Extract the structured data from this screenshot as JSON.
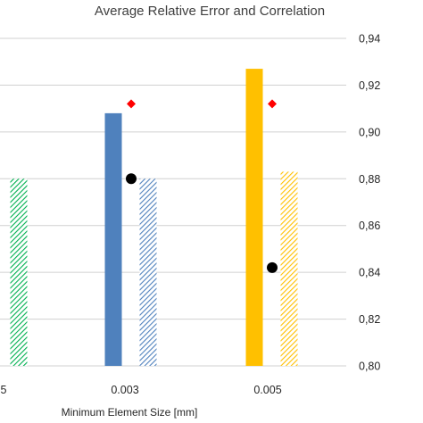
{
  "chart_data": {
    "type": "bar",
    "title": "Average Relative Error and Correlation",
    "xlabel": "Minimum Element Size [mm]",
    "ylabel": "",
    "ylim": [
      0.8,
      0.94
    ],
    "y_ticks": [
      "0,94",
      "0,92",
      "0,90",
      "0,88",
      "0,86",
      "0,84",
      "0,82",
      "0,80"
    ],
    "y_tick_values": [
      0.94,
      0.92,
      0.9,
      0.88,
      0.86,
      0.84,
      0.82,
      0.8
    ],
    "categories": [
      "5",
      "0.003",
      "0.005"
    ],
    "series": [
      {
        "values": [
          null,
          0.908,
          0.927
        ],
        "style": "solid",
        "colors": [
          "#4f81bd",
          "#4f81bd",
          "#ffc000"
        ]
      },
      {
        "values": [
          0.88,
          0.88,
          0.883
        ],
        "style": "hatched",
        "colors": [
          "#00b050",
          "#4f81bd",
          "#ffc000"
        ]
      },
      {
        "values": [
          null,
          0.912,
          0.912
        ],
        "style": "marker-diamond",
        "color": "#ff0000"
      },
      {
        "values": [
          null,
          0.88,
          0.842
        ],
        "style": "marker-circle",
        "color": "#000000"
      }
    ],
    "grid": true,
    "y_axis_position": "right",
    "legend": "none"
  }
}
